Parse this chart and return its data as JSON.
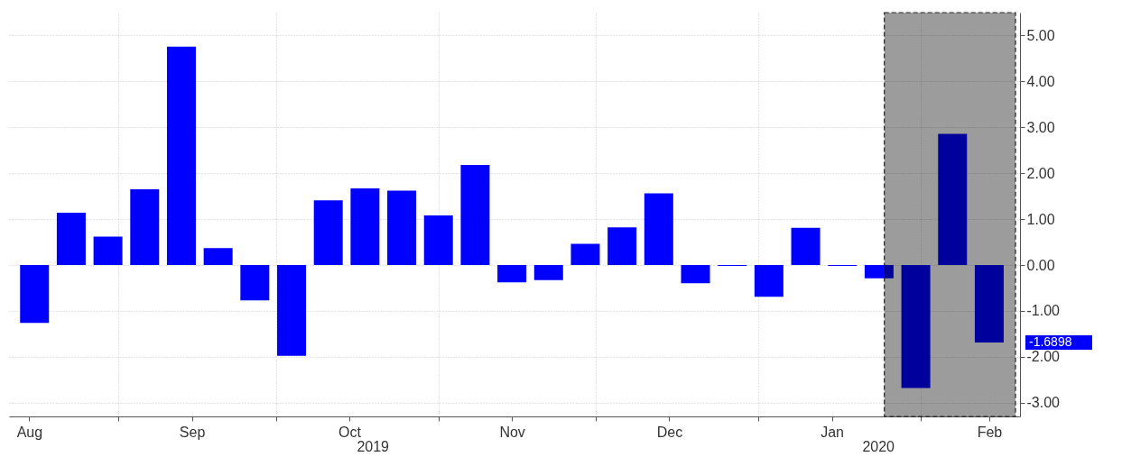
{
  "chart_data": {
    "type": "bar",
    "x": [
      "2019-08-16",
      "2019-08-23",
      "2019-08-30",
      "2019-09-06",
      "2019-09-13",
      "2019-09-20",
      "2019-09-27",
      "2019-10-04",
      "2019-10-11",
      "2019-10-18",
      "2019-10-25",
      "2019-11-01",
      "2019-11-08",
      "2019-11-15",
      "2019-11-22",
      "2019-11-29",
      "2019-12-06",
      "2019-12-13",
      "2019-12-20",
      "2019-12-27",
      "2020-01-03",
      "2020-01-10",
      "2020-01-17",
      "2020-01-24",
      "2020-01-31",
      "2020-02-07",
      "2020-02-14"
    ],
    "values": [
      -1.26,
      1.14,
      0.62,
      1.65,
      4.76,
      0.37,
      -0.77,
      -1.98,
      1.41,
      1.67,
      1.62,
      1.08,
      2.18,
      -0.38,
      -0.33,
      0.46,
      0.82,
      1.56,
      -0.4,
      -0.02,
      -0.69,
      0.81,
      -0.02,
      -0.29,
      -2.68,
      2.86,
      -1.6898
    ],
    "color": "#0000ff",
    "xlim": [
      "2019-08-12",
      "2020-02-19"
    ],
    "xticks": [
      {
        "value": "2019-08-15",
        "label": "Aug"
      },
      {
        "value": "2019-09-01",
        "label": null
      },
      {
        "value": "2019-09-15",
        "label": "Sep"
      },
      {
        "value": "2019-10-01",
        "label": null
      },
      {
        "value": "2019-10-15",
        "label": "Oct"
      },
      {
        "value": "2019-11-01",
        "label": null
      },
      {
        "value": "2019-11-15",
        "label": "Nov"
      },
      {
        "value": "2019-12-01",
        "label": null
      },
      {
        "value": "2019-12-15",
        "label": "Dec"
      },
      {
        "value": "2020-01-01",
        "label": null
      },
      {
        "value": "2020-01-15",
        "label": "Jan"
      },
      {
        "value": "2020-02-01",
        "label": null
      },
      {
        "value": "2020-02-14",
        "label": "Feb"
      }
    ],
    "ylim": [
      -3.3,
      5.5
    ],
    "yticks": [
      {
        "value": -3,
        "label": "-3.00"
      },
      {
        "value": -2,
        "label": "-2.00"
      },
      {
        "value": -1,
        "label": "-1.00"
      },
      {
        "value": 0,
        "label": "0.00"
      },
      {
        "value": 1,
        "label": "1.00"
      },
      {
        "value": 2,
        "label": "2.00"
      },
      {
        "value": 3,
        "label": "3.00"
      },
      {
        "value": 4,
        "label": "4.00"
      },
      {
        "value": 5,
        "label": "5.00"
      }
    ],
    "bands": [
      {
        "axis": "x",
        "from": "2020-01-25",
        "to": "2020-02-19",
        "color": "#9c9c9c"
      }
    ],
    "annotations": [
      "2019",
      "2020",
      "-1.6898"
    ],
    "grid": true
  }
}
